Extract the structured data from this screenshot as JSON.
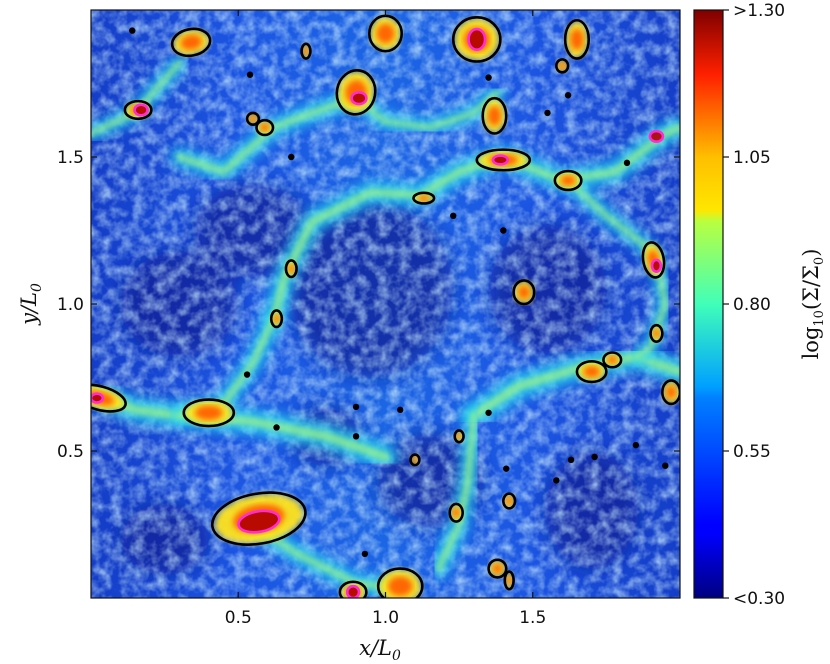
{
  "chart_data": {
    "type": "heatmap",
    "title": "",
    "xlabel": "x/L0",
    "ylabel": "y/L0",
    "xlim": [
      0.0,
      2.0
    ],
    "ylim": [
      0.0,
      2.0
    ],
    "x_ticks": [
      0.5,
      1.0,
      1.5
    ],
    "y_ticks": [
      0.5,
      1.0,
      1.5
    ],
    "x_tick_labels": [
      "0.5",
      "1.0",
      "1.5"
    ],
    "y_tick_labels": [
      "0.5",
      "1.0",
      "1.5"
    ],
    "colormap": "jet",
    "colorbar": {
      "label": "log10(Σ/Σ0)",
      "range": [
        0.3,
        1.3
      ],
      "ticks": [
        0.3,
        0.55,
        0.8,
        1.05,
        1.3
      ],
      "tick_labels": [
        "<0.30",
        "0.55",
        "0.80",
        "1.05",
        ">1.30"
      ]
    },
    "filaments": [
      {
        "points": [
          [
            0.0,
            0.7
          ],
          [
            0.15,
            0.64
          ],
          [
            0.3,
            0.62
          ],
          [
            0.55,
            0.6
          ],
          [
            0.8,
            0.55
          ],
          [
            1.0,
            0.48
          ]
        ],
        "w": 0.08
      },
      {
        "points": [
          [
            0.62,
            0.95
          ],
          [
            0.66,
            1.1
          ],
          [
            0.75,
            1.28
          ],
          [
            0.95,
            1.38
          ],
          [
            1.12,
            1.37
          ],
          [
            1.25,
            1.45
          ],
          [
            1.4,
            1.5
          ],
          [
            1.6,
            1.42
          ],
          [
            1.78,
            1.45
          ],
          [
            1.95,
            1.58
          ],
          [
            2.0,
            1.6
          ]
        ],
        "w": 0.07
      },
      {
        "points": [
          [
            0.62,
            0.95
          ],
          [
            0.55,
            0.8
          ],
          [
            0.45,
            0.66
          ],
          [
            0.3,
            0.62
          ]
        ],
        "w": 0.06
      },
      {
        "points": [
          [
            1.3,
            0.62
          ],
          [
            1.45,
            0.72
          ],
          [
            1.65,
            0.78
          ],
          [
            1.85,
            0.82
          ],
          [
            2.0,
            0.77
          ]
        ],
        "w": 0.08
      },
      {
        "points": [
          [
            1.92,
            1.15
          ],
          [
            1.95,
            1.0
          ],
          [
            1.9,
            0.85
          ],
          [
            1.85,
            0.82
          ]
        ],
        "w": 0.05
      },
      {
        "points": [
          [
            1.3,
            0.62
          ],
          [
            1.28,
            0.4
          ],
          [
            1.25,
            0.25
          ],
          [
            1.18,
            0.1
          ]
        ],
        "w": 0.06
      },
      {
        "points": [
          [
            0.9,
            1.7
          ],
          [
            1.0,
            1.62
          ],
          [
            1.15,
            1.6
          ],
          [
            1.3,
            1.65
          ],
          [
            1.38,
            1.72
          ]
        ],
        "w": 0.05
      },
      {
        "points": [
          [
            0.3,
            1.5
          ],
          [
            0.45,
            1.45
          ],
          [
            0.62,
            1.6
          ],
          [
            0.75,
            1.65
          ],
          [
            0.9,
            1.7
          ]
        ],
        "w": 0.06
      },
      {
        "points": [
          [
            1.62,
            1.42
          ],
          [
            1.75,
            1.3
          ],
          [
            1.88,
            1.2
          ],
          [
            1.92,
            1.15
          ]
        ],
        "w": 0.05
      },
      {
        "points": [
          [
            0.55,
            0.25
          ],
          [
            0.7,
            0.15
          ],
          [
            0.9,
            0.05
          ],
          [
            1.05,
            0.03
          ]
        ],
        "w": 0.06
      },
      {
        "points": [
          [
            0.0,
            1.58
          ],
          [
            0.15,
            1.65
          ],
          [
            0.3,
            1.82
          ]
        ],
        "w": 0.05
      }
    ],
    "black_contours": [
      {
        "x": 0.34,
        "y": 1.89,
        "rx": 0.065,
        "ry": 0.045,
        "rot": -10
      },
      {
        "x": 0.16,
        "y": 1.66,
        "rx": 0.045,
        "ry": 0.03,
        "rot": 0
      },
      {
        "x": 0.9,
        "y": 1.72,
        "rx": 0.065,
        "ry": 0.075,
        "rot": 10
      },
      {
        "x": 1.0,
        "y": 1.92,
        "rx": 0.055,
        "ry": 0.06,
        "rot": 0
      },
      {
        "x": 1.31,
        "y": 1.9,
        "rx": 0.08,
        "ry": 0.075,
        "rot": 0
      },
      {
        "x": 1.37,
        "y": 1.64,
        "rx": 0.04,
        "ry": 0.06,
        "rot": 0
      },
      {
        "x": 1.65,
        "y": 1.9,
        "rx": 0.04,
        "ry": 0.065,
        "rot": 0
      },
      {
        "x": 1.4,
        "y": 1.49,
        "rx": 0.09,
        "ry": 0.035,
        "rot": 0
      },
      {
        "x": 1.62,
        "y": 1.42,
        "rx": 0.045,
        "ry": 0.032,
        "rot": 0
      },
      {
        "x": 1.91,
        "y": 1.15,
        "rx": 0.035,
        "ry": 0.06,
        "rot": -10
      },
      {
        "x": 1.47,
        "y": 1.04,
        "rx": 0.035,
        "ry": 0.04,
        "rot": 0
      },
      {
        "x": 1.13,
        "y": 1.36,
        "rx": 0.035,
        "ry": 0.018,
        "rot": 0
      },
      {
        "x": 0.59,
        "y": 1.6,
        "rx": 0.028,
        "ry": 0.025,
        "rot": 0
      },
      {
        "x": 0.68,
        "y": 1.12,
        "rx": 0.018,
        "ry": 0.028,
        "rot": 0
      },
      {
        "x": 0.63,
        "y": 0.95,
        "rx": 0.018,
        "ry": 0.028,
        "rot": 0
      },
      {
        "x": 0.4,
        "y": 0.63,
        "rx": 0.085,
        "ry": 0.045,
        "rot": 0
      },
      {
        "x": 0.03,
        "y": 0.68,
        "rx": 0.09,
        "ry": 0.04,
        "rot": 15
      },
      {
        "x": 0.57,
        "y": 0.27,
        "rx": 0.16,
        "ry": 0.085,
        "rot": -10
      },
      {
        "x": 1.05,
        "y": 0.04,
        "rx": 0.075,
        "ry": 0.06,
        "rot": 0
      },
      {
        "x": 0.89,
        "y": 0.02,
        "rx": 0.045,
        "ry": 0.035,
        "rot": 0
      },
      {
        "x": 1.7,
        "y": 0.77,
        "rx": 0.05,
        "ry": 0.035,
        "rot": 0
      },
      {
        "x": 1.77,
        "y": 0.81,
        "rx": 0.03,
        "ry": 0.025,
        "rot": 0
      },
      {
        "x": 1.97,
        "y": 0.7,
        "rx": 0.03,
        "ry": 0.04,
        "rot": 0
      },
      {
        "x": 1.92,
        "y": 0.9,
        "rx": 0.02,
        "ry": 0.028,
        "rot": 0
      },
      {
        "x": 1.6,
        "y": 1.81,
        "rx": 0.02,
        "ry": 0.022,
        "rot": 0
      },
      {
        "x": 1.24,
        "y": 0.29,
        "rx": 0.022,
        "ry": 0.03,
        "rot": 0
      },
      {
        "x": 1.42,
        "y": 0.33,
        "rx": 0.02,
        "ry": 0.025,
        "rot": 0
      },
      {
        "x": 1.25,
        "y": 0.55,
        "rx": 0.015,
        "ry": 0.02,
        "rot": 0
      },
      {
        "x": 0.73,
        "y": 1.86,
        "rx": 0.015,
        "ry": 0.025,
        "rot": 0
      },
      {
        "x": 0.55,
        "y": 1.63,
        "rx": 0.02,
        "ry": 0.02,
        "rot": 0
      },
      {
        "x": 1.38,
        "y": 0.1,
        "rx": 0.03,
        "ry": 0.03,
        "rot": 0
      },
      {
        "x": 1.42,
        "y": 0.06,
        "rx": 0.015,
        "ry": 0.03,
        "rot": 0
      },
      {
        "x": 1.1,
        "y": 0.47,
        "rx": 0.015,
        "ry": 0.018,
        "rot": 0
      }
    ],
    "magenta_contours": [
      {
        "x": 0.57,
        "y": 0.26,
        "rx": 0.07,
        "ry": 0.035,
        "rot": -10
      },
      {
        "x": 0.17,
        "y": 1.66,
        "rx": 0.022,
        "ry": 0.018,
        "rot": 0
      },
      {
        "x": 0.91,
        "y": 1.7,
        "rx": 0.025,
        "ry": 0.02,
        "rot": 0
      },
      {
        "x": 1.31,
        "y": 1.9,
        "rx": 0.028,
        "ry": 0.035,
        "rot": 0
      },
      {
        "x": 1.39,
        "y": 1.49,
        "rx": 0.025,
        "ry": 0.015,
        "rot": 0
      },
      {
        "x": 1.92,
        "y": 1.13,
        "rx": 0.015,
        "ry": 0.02,
        "rot": 0
      },
      {
        "x": 0.02,
        "y": 0.68,
        "rx": 0.02,
        "ry": 0.015,
        "rot": 0
      },
      {
        "x": 0.89,
        "y": 0.02,
        "rx": 0.02,
        "ry": 0.02,
        "rot": 0
      },
      {
        "x": 1.92,
        "y": 1.57,
        "rx": 0.022,
        "ry": 0.018,
        "rot": 0
      }
    ],
    "black_dots": [
      [
        0.14,
        1.93
      ],
      [
        1.35,
        1.77
      ],
      [
        0.54,
        1.78
      ],
      [
        1.62,
        1.71
      ],
      [
        1.55,
        1.65
      ],
      [
        1.23,
        1.3
      ],
      [
        1.4,
        1.25
      ],
      [
        0.53,
        0.76
      ],
      [
        0.9,
        0.65
      ],
      [
        0.9,
        0.55
      ],
      [
        1.05,
        0.64
      ],
      [
        0.63,
        0.58
      ],
      [
        1.63,
        0.47
      ],
      [
        1.71,
        0.48
      ],
      [
        1.58,
        0.4
      ],
      [
        1.41,
        0.44
      ],
      [
        0.93,
        0.15
      ],
      [
        1.35,
        0.63
      ],
      [
        1.85,
        0.52
      ],
      [
        0.68,
        1.5
      ],
      [
        1.82,
        1.48
      ],
      [
        1.95,
        0.45
      ]
    ]
  }
}
